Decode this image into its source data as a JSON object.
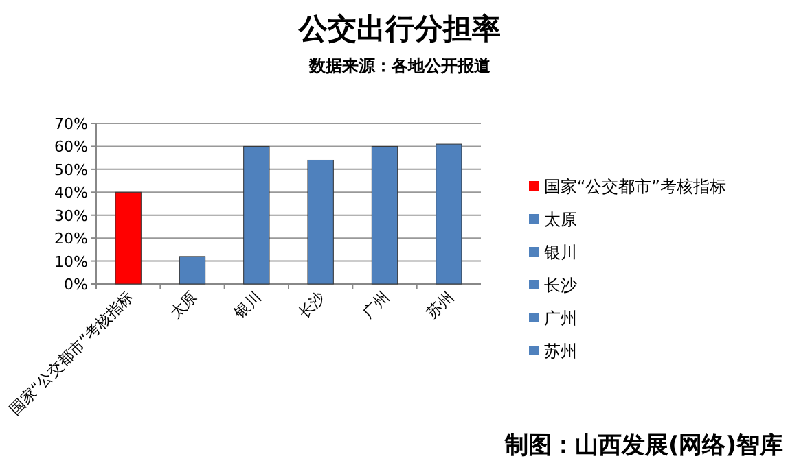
{
  "chart_data": {
    "type": "bar",
    "title": "公交出行分担率",
    "subtitle": "数据来源：各地公开报道",
    "categories": [
      "国家“公交都市”考核指标",
      "太原",
      "银川",
      "长沙",
      "广州",
      "苏州"
    ],
    "series": [
      {
        "name": "国家“公交都市”考核指标",
        "color": "#ff0000",
        "values": [
          40,
          null,
          null,
          null,
          null,
          null
        ]
      },
      {
        "name": "太原",
        "color": "#4f81bd",
        "values": [
          null,
          12,
          null,
          null,
          null,
          null
        ]
      },
      {
        "name": "银川",
        "color": "#4f81bd",
        "values": [
          null,
          null,
          60,
          null,
          null,
          null
        ]
      },
      {
        "name": "长沙",
        "color": "#4f81bd",
        "values": [
          null,
          null,
          null,
          54,
          null,
          null
        ]
      },
      {
        "name": "广州",
        "color": "#4f81bd",
        "values": [
          null,
          null,
          null,
          null,
          60,
          null
        ]
      },
      {
        "name": "苏州",
        "color": "#4f81bd",
        "values": [
          null,
          null,
          null,
          null,
          null,
          61
        ]
      }
    ],
    "ylim": [
      0,
      70
    ],
    "yticks": [
      {
        "value": 0,
        "label": "0%"
      },
      {
        "value": 10,
        "label": "10%"
      },
      {
        "value": 20,
        "label": "20%"
      },
      {
        "value": 30,
        "label": "30%"
      },
      {
        "value": 40,
        "label": "40%"
      },
      {
        "value": 50,
        "label": "50%"
      },
      {
        "value": 60,
        "label": "60%"
      },
      {
        "value": 70,
        "label": "70%"
      }
    ],
    "grid": "y",
    "legend": "right",
    "annotations": [
      "制图：山西发展(网络)智库"
    ]
  }
}
